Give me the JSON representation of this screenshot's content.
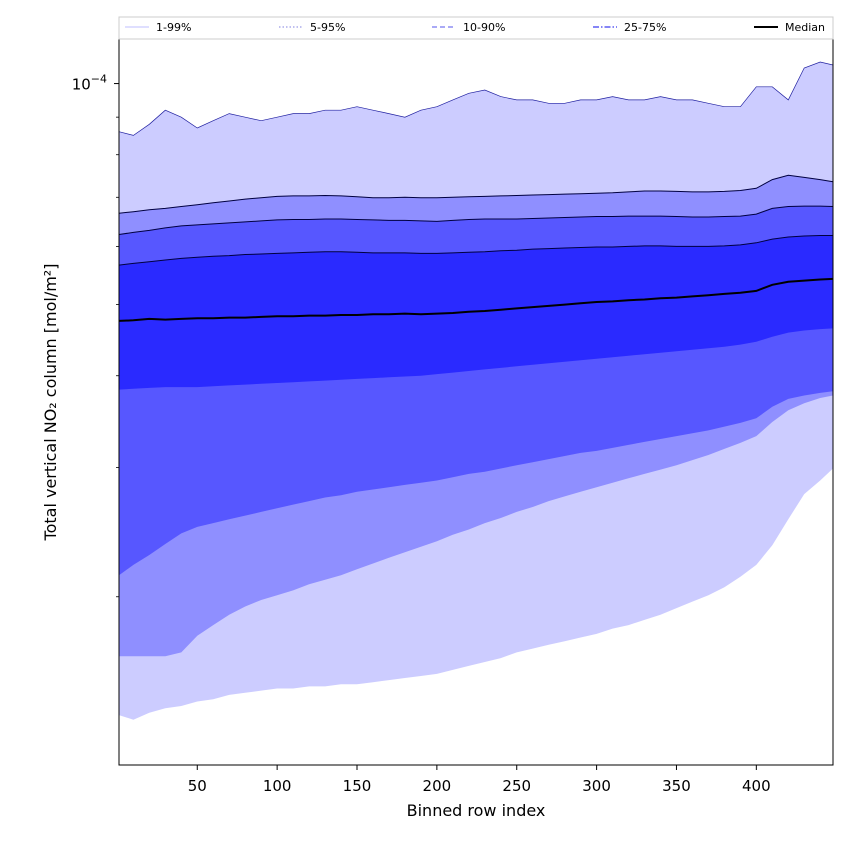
{
  "chart_data": {
    "type": "area",
    "title": "",
    "xlabel": "Binned row index",
    "ylabel": "Total vertical NO₂ column [mol/m²]",
    "xlim": [
      1,
      448
    ],
    "xticks": [
      50,
      100,
      150,
      200,
      250,
      300,
      350,
      400
    ],
    "ylim": [
      1.18e-05,
      0.000115
    ],
    "yscale": "log",
    "ytick_major": {
      "value": 0.0001,
      "base": "10",
      "exponent": "−4"
    },
    "ytick_minor": [
      2e-05,
      3e-05,
      4e-05,
      5e-05,
      6e-05,
      7e-05,
      8e-05,
      9e-05
    ],
    "grid": false,
    "legend_position": "top (single row above plot)",
    "legend": [
      {
        "label": "1-99%",
        "color": "#ccccff",
        "style": "solid"
      },
      {
        "label": "5-95%",
        "color": "#9a9ae6",
        "style": "dotted"
      },
      {
        "label": "10-90%",
        "color": "#7878f0",
        "style": "dashed"
      },
      {
        "label": "25-75%",
        "color": "#3c3cf0",
        "style": "dashdot"
      },
      {
        "label": "Median",
        "color": "#000000",
        "style": "solid"
      }
    ],
    "x": [
      1,
      10,
      20,
      30,
      40,
      50,
      60,
      70,
      80,
      90,
      100,
      110,
      120,
      130,
      140,
      150,
      160,
      170,
      180,
      190,
      200,
      210,
      220,
      230,
      240,
      250,
      260,
      270,
      280,
      290,
      300,
      310,
      320,
      330,
      340,
      350,
      360,
      370,
      380,
      390,
      400,
      410,
      420,
      430,
      440,
      448
    ],
    "bands": [
      {
        "name": "1-99%",
        "fill": "#ccccff",
        "lower": [
          1.38e-05,
          1.36e-05,
          1.39e-05,
          1.41e-05,
          1.42e-05,
          1.44e-05,
          1.45e-05,
          1.47e-05,
          1.48e-05,
          1.49e-05,
          1.5e-05,
          1.5e-05,
          1.51e-05,
          1.51e-05,
          1.52e-05,
          1.52e-05,
          1.53e-05,
          1.54e-05,
          1.55e-05,
          1.56e-05,
          1.57e-05,
          1.59e-05,
          1.61e-05,
          1.63e-05,
          1.65e-05,
          1.68e-05,
          1.7e-05,
          1.72e-05,
          1.74e-05,
          1.76e-05,
          1.78e-05,
          1.81e-05,
          1.83e-05,
          1.86e-05,
          1.89e-05,
          1.93e-05,
          1.97e-05,
          2.01e-05,
          2.06e-05,
          2.13e-05,
          2.21e-05,
          2.35e-05,
          2.55e-05,
          2.76e-05,
          2.88e-05,
          2.99e-05
        ],
        "upper": [
          8.6e-05,
          8.5e-05,
          8.8e-05,
          9.2e-05,
          9e-05,
          8.7e-05,
          8.9e-05,
          9.1e-05,
          9e-05,
          8.9e-05,
          9e-05,
          9.1e-05,
          9.1e-05,
          9.2e-05,
          9.2e-05,
          9.3e-05,
          9.2e-05,
          9.1e-05,
          9e-05,
          9.2e-05,
          9.3e-05,
          9.5e-05,
          9.7e-05,
          9.8e-05,
          9.6e-05,
          9.5e-05,
          9.5e-05,
          9.4e-05,
          9.4e-05,
          9.5e-05,
          9.5e-05,
          9.6e-05,
          9.5e-05,
          9.5e-05,
          9.6e-05,
          9.5e-05,
          9.5e-05,
          9.4e-05,
          9.3e-05,
          9.3e-05,
          9.9e-05,
          9.9e-05,
          9.5e-05,
          0.000105,
          0.000107,
          0.000106
        ]
      },
      {
        "name": "5-95%",
        "fill": "#8f8fff",
        "lower": [
          1.66e-05,
          1.66e-05,
          1.66e-05,
          1.66e-05,
          1.68e-05,
          1.77e-05,
          1.83e-05,
          1.89e-05,
          1.94e-05,
          1.98e-05,
          2.01e-05,
          2.04e-05,
          2.08e-05,
          2.11e-05,
          2.14e-05,
          2.18e-05,
          2.22e-05,
          2.26e-05,
          2.3e-05,
          2.34e-05,
          2.38e-05,
          2.43e-05,
          2.47e-05,
          2.52e-05,
          2.56e-05,
          2.61e-05,
          2.65e-05,
          2.7e-05,
          2.74e-05,
          2.78e-05,
          2.82e-05,
          2.86e-05,
          2.9e-05,
          2.94e-05,
          2.98e-05,
          3.02e-05,
          3.07e-05,
          3.12e-05,
          3.18e-05,
          3.24e-05,
          3.31e-05,
          3.46e-05,
          3.59e-05,
          3.67e-05,
          3.73e-05,
          3.76e-05
        ],
        "upper": [
          6.66e-05,
          6.69e-05,
          6.73e-05,
          6.76e-05,
          6.8e-05,
          6.84e-05,
          6.88e-05,
          6.92e-05,
          6.96e-05,
          6.99e-05,
          7.02e-05,
          7.03e-05,
          7.03e-05,
          7.04e-05,
          7.03e-05,
          7.01e-05,
          6.99e-05,
          6.99e-05,
          7e-05,
          6.99e-05,
          6.99e-05,
          7e-05,
          7.01e-05,
          7.02e-05,
          7.03e-05,
          7.04e-05,
          7.05e-05,
          7.06e-05,
          7.07e-05,
          7.08e-05,
          7.09e-05,
          7.1e-05,
          7.12e-05,
          7.14e-05,
          7.14e-05,
          7.13e-05,
          7.12e-05,
          7.12e-05,
          7.13e-05,
          7.15e-05,
          7.2e-05,
          7.4e-05,
          7.5e-05,
          7.45e-05,
          7.4e-05,
          7.35e-05
        ]
      },
      {
        "name": "10-90%",
        "fill": "#5757ff",
        "lower": [
          2.14e-05,
          2.21e-05,
          2.28e-05,
          2.36e-05,
          2.44e-05,
          2.49e-05,
          2.52e-05,
          2.55e-05,
          2.58e-05,
          2.61e-05,
          2.64e-05,
          2.67e-05,
          2.7e-05,
          2.73e-05,
          2.75e-05,
          2.78e-05,
          2.8e-05,
          2.82e-05,
          2.84e-05,
          2.86e-05,
          2.88e-05,
          2.91e-05,
          2.94e-05,
          2.96e-05,
          2.99e-05,
          3.02e-05,
          3.05e-05,
          3.08e-05,
          3.11e-05,
          3.14e-05,
          3.16e-05,
          3.19e-05,
          3.22e-05,
          3.25e-05,
          3.28e-05,
          3.31e-05,
          3.34e-05,
          3.37e-05,
          3.41e-05,
          3.45e-05,
          3.5e-05,
          3.63e-05,
          3.72e-05,
          3.76e-05,
          3.79e-05,
          3.81e-05
        ],
        "upper": [
          6.23e-05,
          6.27e-05,
          6.31e-05,
          6.36e-05,
          6.4e-05,
          6.42e-05,
          6.44e-05,
          6.46e-05,
          6.48e-05,
          6.5e-05,
          6.52e-05,
          6.53e-05,
          6.53e-05,
          6.54e-05,
          6.54e-05,
          6.53e-05,
          6.52e-05,
          6.51e-05,
          6.51e-05,
          6.5e-05,
          6.49e-05,
          6.51e-05,
          6.53e-05,
          6.54e-05,
          6.54e-05,
          6.54e-05,
          6.55e-05,
          6.56e-05,
          6.57e-05,
          6.58e-05,
          6.59e-05,
          6.59e-05,
          6.6e-05,
          6.6e-05,
          6.6e-05,
          6.59e-05,
          6.58e-05,
          6.58e-05,
          6.59e-05,
          6.6e-05,
          6.64e-05,
          6.76e-05,
          6.8e-05,
          6.81e-05,
          6.81e-05,
          6.8e-05
        ]
      },
      {
        "name": "25-75%",
        "fill": "#2a2aff",
        "lower": [
          3.83e-05,
          3.84e-05,
          3.85e-05,
          3.86e-05,
          3.86e-05,
          3.86e-05,
          3.87e-05,
          3.88e-05,
          3.89e-05,
          3.9e-05,
          3.91e-05,
          3.92e-05,
          3.93e-05,
          3.94e-05,
          3.95e-05,
          3.96e-05,
          3.97e-05,
          3.98e-05,
          3.99e-05,
          4e-05,
          4.02e-05,
          4.04e-05,
          4.06e-05,
          4.08e-05,
          4.1e-05,
          4.12e-05,
          4.14e-05,
          4.16e-05,
          4.18e-05,
          4.2e-05,
          4.22e-05,
          4.24e-05,
          4.26e-05,
          4.28e-05,
          4.3e-05,
          4.32e-05,
          4.34e-05,
          4.36e-05,
          4.38e-05,
          4.41e-05,
          4.45e-05,
          4.52e-05,
          4.58e-05,
          4.61e-05,
          4.63e-05,
          4.64e-05
        ],
        "upper": [
          5.66e-05,
          5.69e-05,
          5.72e-05,
          5.75e-05,
          5.78e-05,
          5.8e-05,
          5.82e-05,
          5.83e-05,
          5.85e-05,
          5.86e-05,
          5.87e-05,
          5.88e-05,
          5.89e-05,
          5.9e-05,
          5.9e-05,
          5.89e-05,
          5.88e-05,
          5.88e-05,
          5.88e-05,
          5.87e-05,
          5.87e-05,
          5.88e-05,
          5.89e-05,
          5.9e-05,
          5.92e-05,
          5.93e-05,
          5.95e-05,
          5.96e-05,
          5.97e-05,
          5.98e-05,
          5.99e-05,
          5.99e-05,
          6e-05,
          6.01e-05,
          6.01e-05,
          6e-05,
          6e-05,
          6e-05,
          6.01e-05,
          6.03e-05,
          6.07e-05,
          6.14e-05,
          6.18e-05,
          6.2e-05,
          6.21e-05,
          6.21e-05
        ]
      }
    ],
    "median": [
      4.75e-05,
      4.76e-05,
      4.78e-05,
      4.77e-05,
      4.78e-05,
      4.79e-05,
      4.79e-05,
      4.8e-05,
      4.8e-05,
      4.81e-05,
      4.82e-05,
      4.82e-05,
      4.83e-05,
      4.83e-05,
      4.84e-05,
      4.84e-05,
      4.85e-05,
      4.85e-05,
      4.86e-05,
      4.85e-05,
      4.86e-05,
      4.87e-05,
      4.89e-05,
      4.9e-05,
      4.92e-05,
      4.94e-05,
      4.96e-05,
      4.98e-05,
      5e-05,
      5.02e-05,
      5.04e-05,
      5.05e-05,
      5.07e-05,
      5.08e-05,
      5.1e-05,
      5.11e-05,
      5.13e-05,
      5.15e-05,
      5.17e-05,
      5.19e-05,
      5.22e-05,
      5.32e-05,
      5.37e-05,
      5.39e-05,
      5.41e-05,
      5.42e-05
    ]
  }
}
